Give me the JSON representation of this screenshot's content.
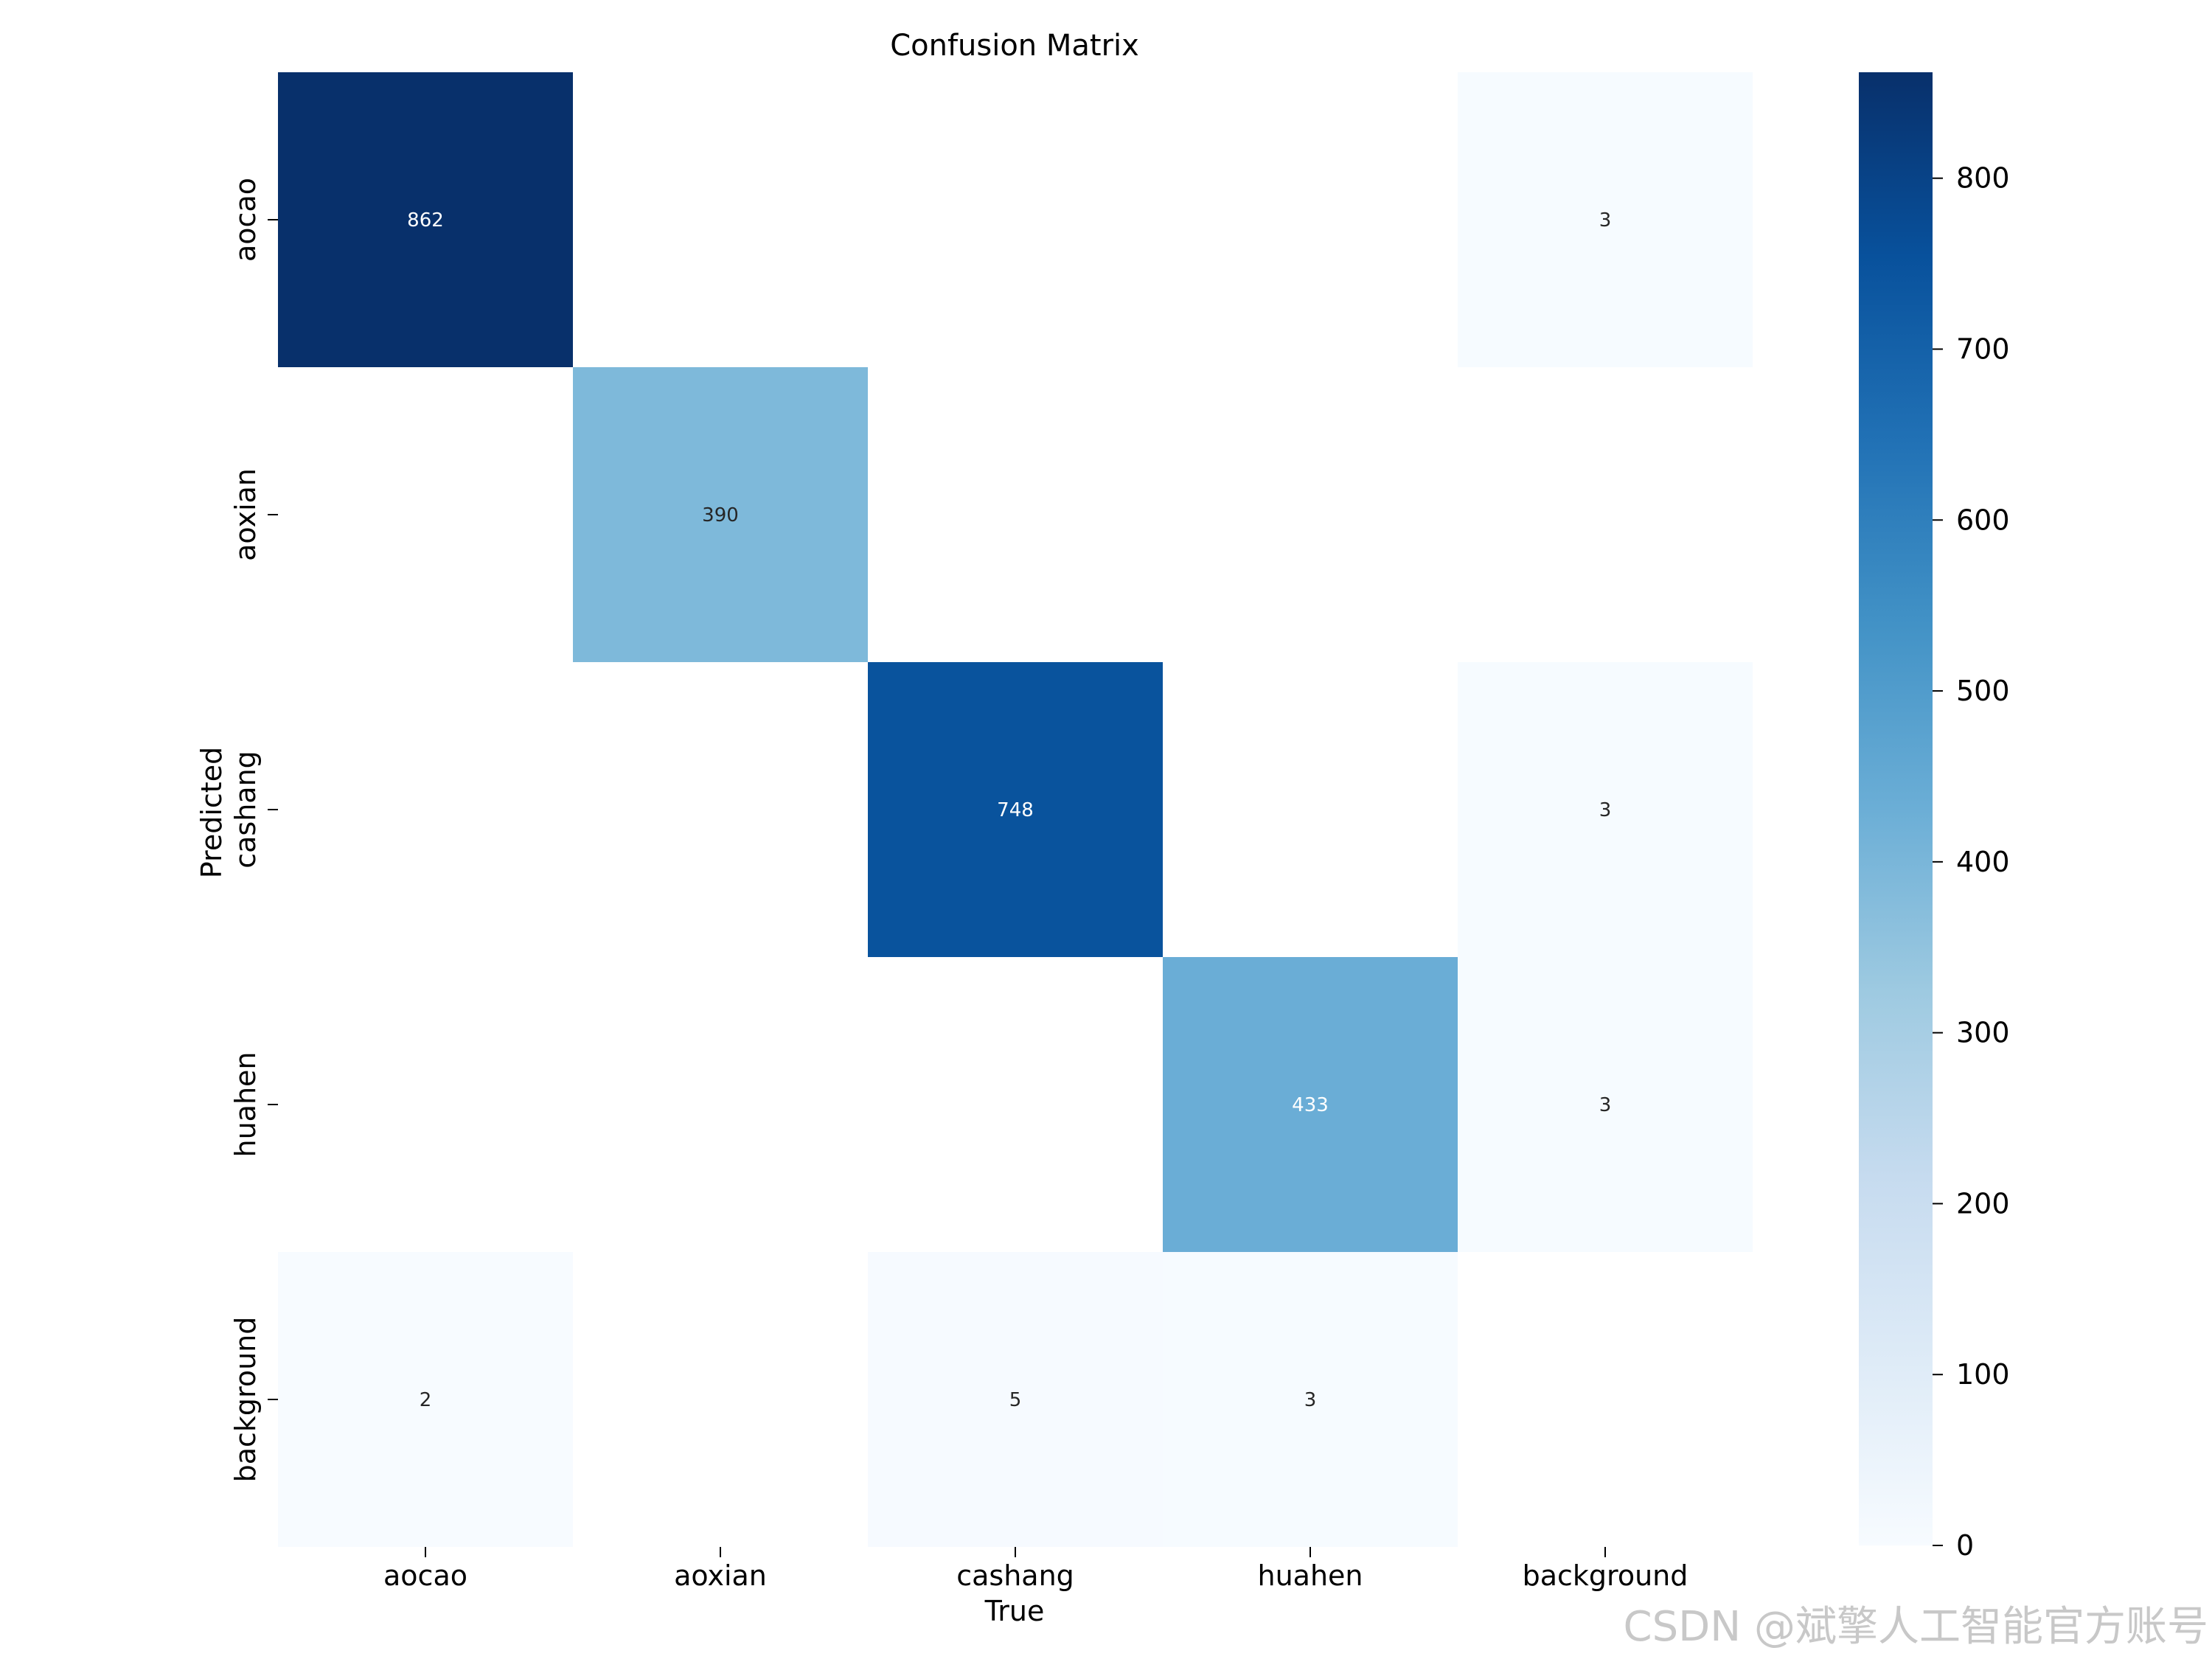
{
  "chart_data": {
    "type": "heatmap",
    "title": "Confusion Matrix",
    "xlabel": "True",
    "ylabel": "Predicted",
    "x_categories": [
      "aocao",
      "aoxian",
      "cashang",
      "huahen",
      "background"
    ],
    "y_categories": [
      "aocao",
      "aoxian",
      "cashang",
      "huahen",
      "background"
    ],
    "matrix": [
      [
        862,
        null,
        null,
        null,
        3
      ],
      [
        null,
        390,
        null,
        null,
        null
      ],
      [
        null,
        null,
        748,
        null,
        3
      ],
      [
        null,
        null,
        null,
        433,
        3
      ],
      [
        2,
        null,
        5,
        3,
        null
      ]
    ],
    "colormap": "Blues",
    "colorbar": {
      "range": [
        0,
        862
      ],
      "ticks": [
        0,
        100,
        200,
        300,
        400,
        500,
        600,
        700,
        800
      ]
    },
    "colors": {
      "text_dark": "#262626",
      "text_light": "#ffffff"
    }
  },
  "watermark": "CSDN @斌擎人工智能官方账号"
}
